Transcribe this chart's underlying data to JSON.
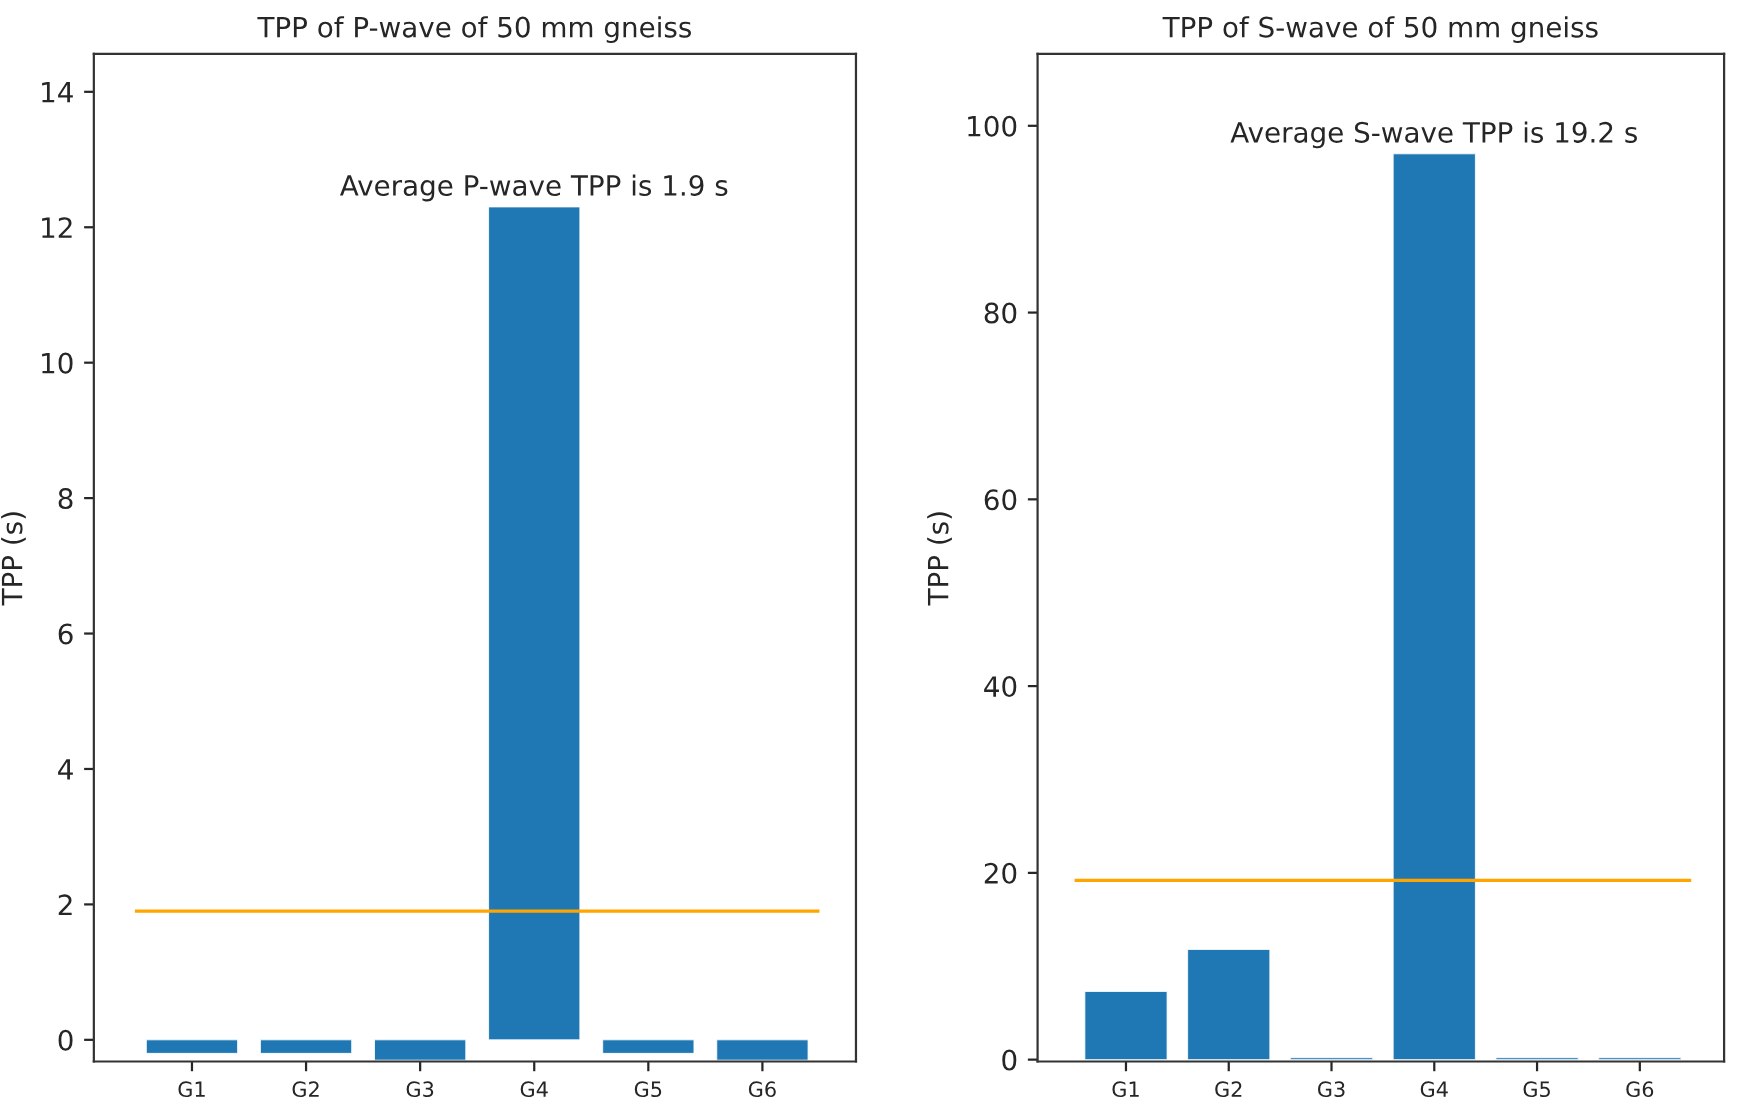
{
  "chart_data": [
    {
      "type": "bar",
      "title": "TPP of P-wave of 50 mm gneiss",
      "ylabel": "TPP (s)",
      "categories": [
        "G1",
        "G2",
        "G3",
        "G4",
        "G5",
        "G6"
      ],
      "values": [
        -0.2,
        -0.2,
        -0.3,
        12.3,
        -0.2,
        -0.3
      ],
      "color": "#1f77b4",
      "ylim": [
        -0.32,
        14.56
      ],
      "yticks": [
        0,
        2,
        4,
        6,
        8,
        10,
        12,
        14
      ],
      "grid": false,
      "ref_lines": [
        {
          "axis": "y",
          "value": 1.9,
          "color": "#ffa500"
        }
      ],
      "annotations": [
        {
          "text": "Average P-wave TPP is 1.9 s",
          "x": "G4",
          "y": 12.3
        }
      ]
    },
    {
      "type": "bar",
      "title": "TPP of S-wave of 50 mm gneiss",
      "ylabel": "TPP (s)",
      "categories": [
        "G1",
        "G2",
        "G3",
        "G4",
        "G5",
        "G6"
      ],
      "values": [
        7.3,
        11.8,
        0.2,
        97,
        0.2,
        0.2
      ],
      "color": "#1f77b4",
      "ylim": [
        -0.2,
        107.7
      ],
      "yticks": [
        0,
        20,
        40,
        60,
        80,
        100
      ],
      "grid": false,
      "ref_lines": [
        {
          "axis": "y",
          "value": 19.2,
          "color": "#ffa500"
        }
      ],
      "annotations": [
        {
          "text": "Average S-wave TPP is 19.2 s",
          "x": "G4",
          "y": 97
        }
      ]
    }
  ]
}
